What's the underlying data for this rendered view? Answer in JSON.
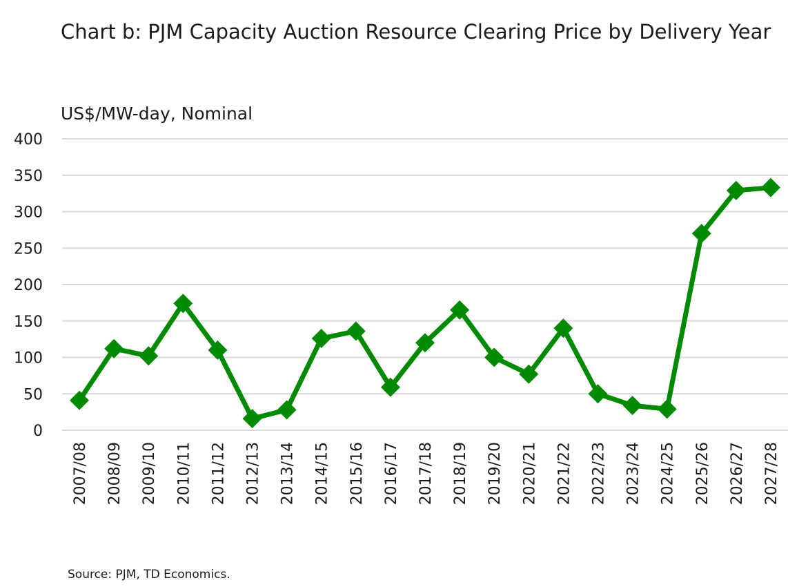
{
  "chart_data": {
    "type": "line",
    "title": "Chart b: PJM Capacity Auction Resource Clearing Price by Delivery Year",
    "ylabel": "US$/MW-day, Nominal",
    "xlabel": "",
    "source": "Source: PJM, TD Economics.",
    "ylim": [
      0,
      400
    ],
    "yticks": [
      0,
      50,
      100,
      150,
      200,
      250,
      300,
      350,
      400
    ],
    "grid": true,
    "legend": "none",
    "color": "#008a00",
    "marker": "diamond",
    "categories": [
      "2007/08",
      "2008/09",
      "2009/10",
      "2010/11",
      "2011/12",
      "2012/13",
      "2013/14",
      "2014/15",
      "2015/16",
      "2016/17",
      "2017/18",
      "2018/19",
      "2019/20",
      "2020/21",
      "2021/22",
      "2022/23",
      "2023/24",
      "2024/25",
      "2025/26",
      "2026/27",
      "2027/28"
    ],
    "values": [
      41,
      112,
      102,
      174,
      110,
      16,
      28,
      126,
      136,
      59,
      120,
      165,
      100,
      77,
      140,
      50,
      34,
      29,
      270,
      329,
      333
    ]
  }
}
